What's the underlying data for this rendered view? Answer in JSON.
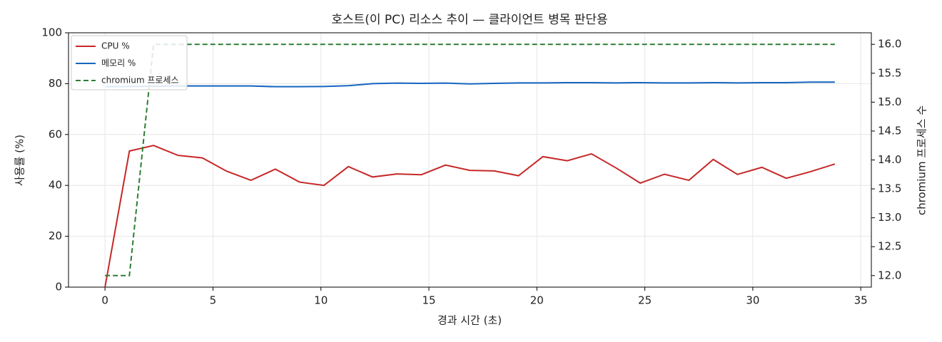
{
  "chart_data": {
    "type": "line",
    "title": "호스트(이 PC) 리소스 추이 — 클라이언트 병목 판단용",
    "xlabel": "경과 시간 (초)",
    "ylabel": "사용률 (%)",
    "y2label": "chromium 프로세스 수",
    "x": [
      0,
      1.13,
      2.25,
      3.38,
      4.51,
      5.63,
      6.76,
      7.89,
      9.01,
      10.14,
      11.27,
      12.39,
      13.52,
      14.65,
      15.77,
      16.9,
      18.03,
      19.15,
      20.28,
      21.41,
      22.53,
      23.66,
      24.79,
      25.91,
      27.04,
      28.17,
      29.29,
      30.42,
      31.55,
      32.67,
      33.8
    ],
    "series": [
      {
        "name": "CPU %",
        "color": "#c62828",
        "linestyle": "solid",
        "values": [
          0,
          53.5,
          55.7,
          51.8,
          50.8,
          45.6,
          42,
          46.4,
          41.3,
          40,
          47.4,
          43.3,
          44.5,
          44.2,
          48,
          45.9,
          45.7,
          43.8,
          51.3,
          49.7,
          52.4,
          46.9,
          40.9,
          44.4,
          42,
          50.2,
          44.3,
          47.1,
          42.8,
          45.4,
          48.4
        ]
      },
      {
        "name": "메모리 %",
        "color": "#1565c0",
        "linestyle": "solid",
        "values": [
          78.8,
          78.9,
          79.0,
          79.1,
          79.1,
          79.1,
          79.1,
          78.8,
          78.8,
          78.9,
          79.2,
          80.0,
          80.2,
          80.1,
          80.2,
          79.9,
          80.1,
          80.3,
          80.3,
          80.4,
          80.4,
          80.3,
          80.4,
          80.3,
          80.3,
          80.4,
          80.3,
          80.4,
          80.4,
          80.6,
          80.6
        ]
      },
      {
        "name": "chromium 프로세스",
        "color": "#2e7d32",
        "linestyle": "dashed",
        "axis": "y2",
        "values": [
          12,
          12,
          16,
          16,
          16,
          16,
          16,
          16,
          16,
          16,
          16,
          16,
          16,
          16,
          16,
          16,
          16,
          16,
          16,
          16,
          16,
          16,
          16,
          16,
          16,
          16,
          16,
          16,
          16,
          16,
          16
        ]
      }
    ],
    "xlim": [
      -1.69,
      35.49
    ],
    "xticks": [
      0,
      5,
      10,
      15,
      20,
      25,
      30,
      35
    ],
    "ylim": [
      0,
      100
    ],
    "yticks": [
      0,
      20,
      40,
      60,
      80,
      100
    ],
    "y2lim": [
      11.8,
      16.2
    ],
    "y2ticks": [
      {
        "value": 12,
        "label": "12.0"
      },
      {
        "value": 12.5,
        "label": "12.5"
      },
      {
        "value": 13,
        "label": "13.0"
      },
      {
        "value": 13.5,
        "label": "13.5"
      },
      {
        "value": 14,
        "label": "14.0"
      },
      {
        "value": 14.5,
        "label": "14.5"
      },
      {
        "value": 15,
        "label": "15.0"
      },
      {
        "value": 15.5,
        "label": "15.5"
      },
      {
        "value": 16,
        "label": "16.0"
      }
    ],
    "grid": true,
    "legend": "upper-left"
  }
}
